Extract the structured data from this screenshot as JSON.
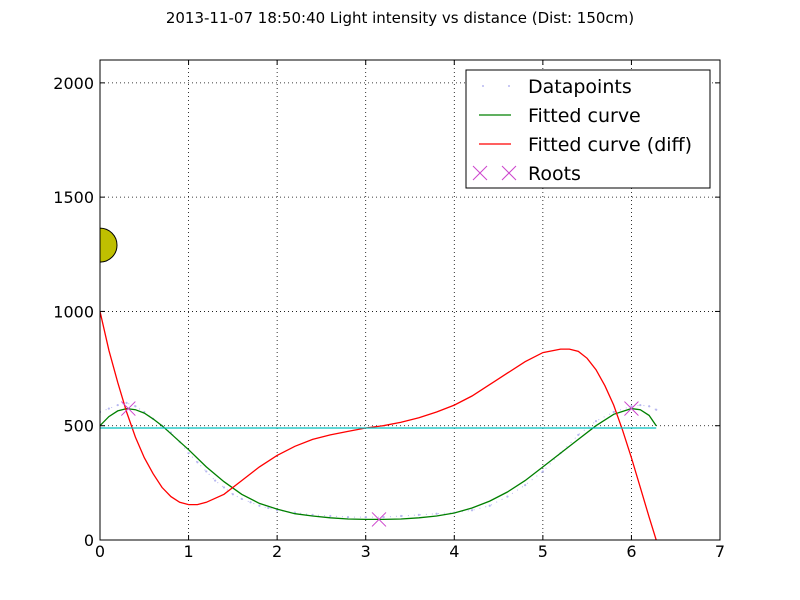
{
  "chart_data": {
    "type": "line",
    "title": "2013-11-07 18:50:40 Light intensity vs distance (Dist: 150cm)",
    "xlabel": "",
    "ylabel": "",
    "xlim": [
      0,
      7
    ],
    "ylim": [
      0,
      2100
    ],
    "x_ticks": [
      0,
      1,
      2,
      3,
      4,
      5,
      6,
      7
    ],
    "y_ticks": [
      0,
      500,
      1000,
      1500,
      2000
    ],
    "grid": true,
    "legend_placement": "top-right",
    "colors": {
      "datapoints": "#b8b8f0",
      "fitted": "#008000",
      "fitted_diff": "#ff0000",
      "roots": "#cc44cc",
      "threshold": "#00bfbf",
      "marker_fill": "#bfbf00"
    },
    "series": [
      {
        "name": "Datapoints",
        "style": "dotted",
        "x": [
          0.0,
          0.1,
          0.2,
          0.3,
          0.4,
          0.5,
          0.6,
          0.7,
          0.8,
          0.9,
          1.0,
          1.1,
          1.2,
          1.3,
          1.4,
          1.5,
          1.6,
          1.7,
          1.8,
          1.9,
          2.0,
          2.2,
          2.4,
          2.6,
          2.8,
          3.0,
          3.2,
          3.4,
          3.6,
          3.8,
          4.0,
          4.2,
          4.4,
          4.6,
          4.8,
          5.0,
          5.2,
          5.4,
          5.6,
          5.8,
          6.0,
          6.1,
          6.2,
          6.28
        ],
        "y": [
          560,
          575,
          590,
          600,
          585,
          560,
          530,
          500,
          470,
          430,
          380,
          340,
          300,
          260,
          230,
          200,
          180,
          165,
          150,
          140,
          130,
          120,
          110,
          105,
          100,
          100,
          100,
          105,
          110,
          115,
          120,
          130,
          150,
          190,
          240,
          300,
          380,
          460,
          520,
          560,
          585,
          590,
          585,
          570
        ]
      },
      {
        "name": "Fitted curve",
        "style": "solid",
        "x": [
          0.0,
          0.1,
          0.2,
          0.3,
          0.4,
          0.5,
          0.6,
          0.7,
          0.8,
          0.9,
          1.0,
          1.2,
          1.4,
          1.6,
          1.8,
          2.0,
          2.2,
          2.4,
          2.6,
          2.8,
          3.0,
          3.2,
          3.4,
          3.6,
          3.8,
          4.0,
          4.2,
          4.4,
          4.6,
          4.8,
          5.0,
          5.2,
          5.4,
          5.6,
          5.8,
          6.0,
          6.1,
          6.2,
          6.28
        ],
        "y": [
          500,
          540,
          565,
          575,
          570,
          555,
          530,
          500,
          465,
          430,
          395,
          320,
          255,
          200,
          160,
          135,
          115,
          105,
          97,
          92,
          90,
          90,
          92,
          97,
          105,
          118,
          140,
          170,
          210,
          260,
          320,
          380,
          440,
          500,
          550,
          575,
          570,
          545,
          500
        ]
      },
      {
        "name": "Fitted curve (diff)",
        "style": "solid",
        "x": [
          0.0,
          0.1,
          0.2,
          0.3,
          0.4,
          0.5,
          0.6,
          0.7,
          0.8,
          0.9,
          1.0,
          1.1,
          1.2,
          1.4,
          1.6,
          1.8,
          2.0,
          2.2,
          2.4,
          2.6,
          2.8,
          3.0,
          3.2,
          3.4,
          3.6,
          3.8,
          4.0,
          4.2,
          4.4,
          4.6,
          4.8,
          5.0,
          5.2,
          5.3,
          5.4,
          5.5,
          5.6,
          5.7,
          5.8,
          5.9,
          6.0,
          6.1,
          6.2,
          6.28
        ],
        "y": [
          1000,
          830,
          690,
          560,
          450,
          360,
          290,
          230,
          190,
          165,
          155,
          155,
          165,
          200,
          260,
          320,
          370,
          410,
          440,
          460,
          475,
          490,
          500,
          515,
          535,
          560,
          590,
          630,
          680,
          730,
          780,
          820,
          835,
          835,
          825,
          795,
          745,
          675,
          590,
          480,
          360,
          230,
          100,
          0
        ]
      },
      {
        "name": "Roots",
        "style": "markers",
        "x": [
          0.32,
          3.15,
          6.0
        ],
        "y": [
          575,
          90,
          575
        ]
      },
      {
        "name": "",
        "style": "solid",
        "x": [
          0,
          6.28
        ],
        "y": [
          490,
          490
        ]
      }
    ],
    "marker": {
      "x": 0.0,
      "y": 1290
    }
  }
}
